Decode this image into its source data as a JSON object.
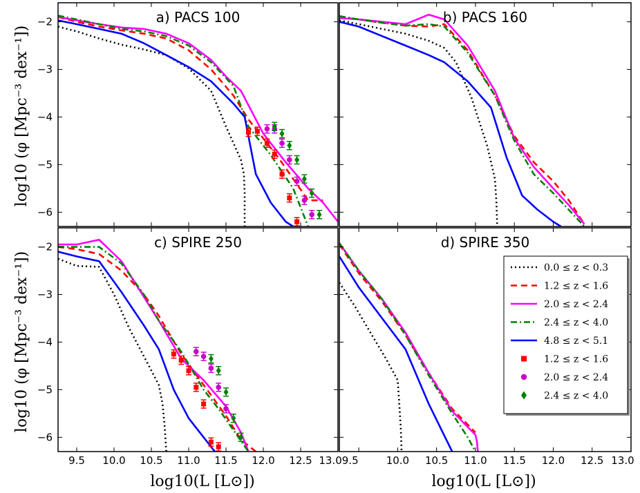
{
  "chart_data": {
    "type": "line",
    "xlabel": "log10(L [L⊙])",
    "ylabel": "log10 (φ [Mpc⁻³ dex⁻¹])",
    "xlim": [
      9.25,
      13.0
    ],
    "ylim": [
      -6.3,
      -1.6
    ],
    "xticks": [
      9.5,
      10.0,
      10.5,
      11.0,
      11.5,
      12.0,
      12.5,
      13.0
    ],
    "xtick_labels": [
      "9.5",
      "10.0",
      "10.5",
      "11.0",
      "11.5",
      "12.0",
      "12.5",
      "13.0"
    ],
    "xtick_labels_merged": [
      "13.09.5",
      "13.0"
    ],
    "yticks": [
      -2,
      -3,
      -4,
      -5,
      -6
    ],
    "ytick_labels": [
      "−2",
      "−3",
      "−4",
      "−5",
      "−6"
    ],
    "legend": {
      "placement": "lower-right of panel d",
      "entries": [
        {
          "label": "0.0 ≤ z < 0.3",
          "color": "#000000",
          "style": "dotted"
        },
        {
          "label": "1.2 ≤ z < 1.6",
          "color": "#ff0000",
          "style": "dashed"
        },
        {
          "label": "2.0 ≤ z < 2.4",
          "color": "#ff00ff",
          "style": "solid"
        },
        {
          "label": "2.4 ≤ z < 4.0",
          "color": "#008000",
          "style": "dashdot"
        },
        {
          "label": "4.8 ≤ z < 5.1",
          "color": "#0000ff",
          "style": "solid"
        },
        {
          "label": "1.2 ≤ z < 1.6",
          "color": "#ff0000",
          "marker": "square"
        },
        {
          "label": "2.0 ≤ z < 2.4",
          "color": "#cc00cc",
          "marker": "circle"
        },
        {
          "label": "2.4 ≤ z < 4.0",
          "color": "#008000",
          "marker": "diamond"
        }
      ]
    },
    "panels": [
      {
        "title": "a) PACS 100",
        "series": [
          {
            "name": "0.0 ≤ z < 0.3",
            "color": "#000000",
            "style": "dotted",
            "x": [
              9.25,
              9.5,
              9.8,
              10.1,
              10.4,
              10.7,
              11.0,
              11.3,
              11.5,
              11.7,
              11.74,
              11.75,
              11.75
            ],
            "y": [
              -2.1,
              -2.2,
              -2.35,
              -2.48,
              -2.58,
              -2.7,
              -2.98,
              -3.45,
              -4.2,
              -4.9,
              -5.2,
              -5.6,
              -6.3
            ]
          },
          {
            "name": "1.2 ≤ z < 1.6",
            "color": "#ff0000",
            "style": "dashed",
            "x": [
              9.25,
              9.5,
              9.8,
              10.1,
              10.4,
              10.7,
              11.0,
              11.3,
              11.6,
              11.8,
              12.0,
              12.2,
              12.4,
              12.6,
              12.8
            ],
            "y": [
              -1.9,
              -2.0,
              -2.1,
              -2.18,
              -2.25,
              -2.35,
              -2.6,
              -3.0,
              -3.55,
              -4.05,
              -4.45,
              -4.85,
              -5.3,
              -5.75,
              -5.75
            ]
          },
          {
            "name": "2.0 ≤ z < 2.4",
            "color": "#ff00ff",
            "style": "solid",
            "x": [
              9.25,
              9.5,
              9.8,
              10.1,
              10.4,
              10.7,
              11.0,
              11.3,
              11.5,
              11.7,
              12.0,
              12.3,
              12.6,
              12.8,
              13.0
            ],
            "y": [
              -1.9,
              -1.97,
              -2.05,
              -2.12,
              -2.15,
              -2.25,
              -2.45,
              -2.8,
              -3.15,
              -3.45,
              -4.35,
              -4.95,
              -5.5,
              -5.8,
              -6.2
            ]
          },
          {
            "name": "2.4 ≤ z < 4.0",
            "color": "#008000",
            "style": "dashdot",
            "x": [
              9.25,
              9.5,
              9.8,
              10.1,
              10.4,
              10.7,
              11.0,
              11.3,
              11.6,
              11.8,
              12.1,
              12.4,
              12.6
            ],
            "y": [
              -1.87,
              -1.95,
              -2.05,
              -2.15,
              -2.2,
              -2.3,
              -2.5,
              -2.85,
              -3.35,
              -4.2,
              -4.8,
              -5.5,
              -6.3
            ]
          },
          {
            "name": "4.8 ≤ z < 5.1",
            "color": "#0000ff",
            "style": "solid",
            "x": [
              9.25,
              9.5,
              9.8,
              10.1,
              10.4,
              10.7,
              11.0,
              11.3,
              11.6,
              11.75,
              11.9,
              12.1,
              12.3,
              12.4
            ],
            "y": [
              -1.97,
              -2.05,
              -2.15,
              -2.25,
              -2.45,
              -2.7,
              -2.95,
              -3.25,
              -3.72,
              -4.0,
              -5.2,
              -5.8,
              -6.2,
              -6.3
            ]
          }
        ],
        "points": [
          {
            "name": "1.2 ≤ z < 1.6",
            "color": "#ff0000",
            "marker": "square",
            "x": [
              11.8,
              11.92,
              12.05,
              12.15,
              12.25,
              12.35,
              12.45
            ],
            "y": [
              -4.32,
              -4.3,
              -4.55,
              -4.78,
              -5.2,
              -5.7,
              -6.2
            ]
          },
          {
            "name": "2.0 ≤ z < 2.4",
            "color": "#cc00cc",
            "marker": "circle",
            "x": [
              12.05,
              12.15,
              12.25,
              12.35,
              12.45,
              12.55,
              12.65
            ],
            "y": [
              -4.25,
              -4.25,
              -4.55,
              -4.9,
              -5.35,
              -5.75,
              -6.05
            ]
          },
          {
            "name": "2.4 ≤ z < 4.0",
            "color": "#008000",
            "marker": "diamond",
            "x": [
              12.15,
              12.25,
              12.35,
              12.45,
              12.55,
              12.65,
              12.75
            ],
            "y": [
              -4.2,
              -4.35,
              -4.6,
              -4.9,
              -5.3,
              -5.6,
              -6.05
            ]
          }
        ]
      },
      {
        "title": "b) PACS 160",
        "series": [
          {
            "name": "0.0 ≤ z < 0.3",
            "color": "#000000",
            "style": "dotted",
            "x": [
              9.25,
              9.5,
              9.8,
              10.1,
              10.4,
              10.6,
              10.75,
              10.95,
              11.15,
              11.25,
              11.27,
              11.28
            ],
            "y": [
              -1.97,
              -2.05,
              -2.15,
              -2.25,
              -2.4,
              -2.55,
              -2.85,
              -3.6,
              -4.6,
              -5.3,
              -5.8,
              -6.3
            ]
          },
          {
            "name": "1.2 ≤ z < 1.6",
            "color": "#ff0000",
            "style": "dashed",
            "x": [
              9.25,
              9.5,
              9.8,
              10.1,
              10.4,
              10.6,
              10.9,
              11.25,
              11.5,
              11.75,
              12.0,
              12.2,
              12.4
            ],
            "y": [
              -1.9,
              -1.95,
              -2.02,
              -2.08,
              -2.1,
              -2.05,
              -2.6,
              -3.55,
              -4.4,
              -4.95,
              -5.35,
              -5.75,
              -6.25
            ]
          },
          {
            "name": "2.0 ≤ z < 2.4",
            "color": "#ff00ff",
            "style": "solid",
            "x": [
              9.25,
              9.5,
              9.8,
              10.1,
              10.4,
              10.6,
              10.9,
              11.25,
              11.5,
              11.75,
              12.0,
              12.2,
              12.4
            ],
            "y": [
              -1.92,
              -1.95,
              -2.0,
              -2.05,
              -1.85,
              -1.95,
              -2.5,
              -3.45,
              -4.45,
              -5.05,
              -5.5,
              -5.85,
              -6.25
            ]
          },
          {
            "name": "2.4 ≤ z < 4.0",
            "color": "#008000",
            "style": "dashdot",
            "x": [
              9.25,
              9.5,
              9.8,
              10.1,
              10.4,
              10.6,
              10.9,
              11.25,
              11.5,
              11.75,
              12.0,
              12.2,
              12.4
            ],
            "y": [
              -1.88,
              -1.95,
              -2.02,
              -2.08,
              -2.05,
              -2.1,
              -2.65,
              -3.55,
              -4.5,
              -5.2,
              -5.6,
              -5.95,
              -6.3
            ]
          },
          {
            "name": "4.8 ≤ z < 5.1",
            "color": "#0000ff",
            "style": "solid",
            "x": [
              9.25,
              9.5,
              9.8,
              10.1,
              10.4,
              10.6,
              10.9,
              11.2,
              11.4,
              11.6,
              11.8,
              12.0,
              12.1
            ],
            "y": [
              -2.0,
              -2.1,
              -2.3,
              -2.5,
              -2.7,
              -2.85,
              -3.25,
              -3.8,
              -4.85,
              -5.65,
              -5.95,
              -6.2,
              -6.3
            ]
          }
        ],
        "points": []
      },
      {
        "title": "c) SPIRE 250",
        "series": [
          {
            "name": "0.0 ≤ z < 0.3",
            "color": "#000000",
            "style": "dotted",
            "x": [
              9.25,
              9.5,
              9.8,
              10.0,
              10.2,
              10.4,
              10.6,
              10.65,
              10.68,
              10.7
            ],
            "y": [
              -2.25,
              -2.4,
              -2.42,
              -3.0,
              -3.7,
              -4.3,
              -4.9,
              -5.3,
              -5.8,
              -6.3
            ]
          },
          {
            "name": "1.2 ≤ z < 1.6",
            "color": "#ff0000",
            "style": "dashed",
            "x": [
              9.25,
              9.5,
              9.8,
              10.1,
              10.4,
              10.6,
              10.9,
              11.2,
              11.5,
              11.7,
              11.9
            ],
            "y": [
              -2.0,
              -2.05,
              -2.15,
              -2.5,
              -3.0,
              -3.45,
              -4.25,
              -4.9,
              -5.55,
              -6.05,
              -6.3
            ]
          },
          {
            "name": "2.0 ≤ z < 2.4",
            "color": "#ff00ff",
            "style": "solid",
            "x": [
              9.25,
              9.5,
              9.8,
              10.1,
              10.4,
              10.6,
              10.9,
              11.2,
              11.5,
              11.7,
              11.8
            ],
            "y": [
              -1.95,
              -1.95,
              -1.85,
              -2.3,
              -3.05,
              -3.55,
              -4.35,
              -4.8,
              -5.35,
              -5.9,
              -6.3
            ]
          },
          {
            "name": "2.4 ≤ z < 4.0",
            "color": "#008000",
            "style": "dashdot",
            "x": [
              9.25,
              9.5,
              9.8,
              10.1,
              10.4,
              10.6,
              10.9,
              11.2,
              11.4,
              11.6,
              11.8
            ],
            "y": [
              -2.0,
              -2.0,
              -2.0,
              -2.35,
              -3.0,
              -3.55,
              -4.2,
              -5.0,
              -5.4,
              -5.85,
              -6.3
            ]
          },
          {
            "name": "4.8 ≤ z < 5.1",
            "color": "#0000ff",
            "style": "solid",
            "x": [
              9.25,
              9.5,
              9.8,
              10.1,
              10.4,
              10.6,
              10.8,
              11.0,
              11.2,
              11.35
            ],
            "y": [
              -2.1,
              -2.2,
              -2.3,
              -2.95,
              -3.65,
              -4.15,
              -5.0,
              -5.6,
              -6.0,
              -6.3
            ]
          }
        ],
        "points": [
          {
            "name": "1.2 ≤ z < 1.6",
            "color": "#ff0000",
            "marker": "square",
            "x": [
              10.8,
              10.9,
              11.0,
              11.1,
              11.2,
              11.3,
              11.4
            ],
            "y": [
              -4.25,
              -4.38,
              -4.6,
              -4.95,
              -5.3,
              -6.1,
              -6.2
            ]
          },
          {
            "name": "2.0 ≤ z < 2.4",
            "color": "#cc00cc",
            "marker": "circle",
            "x": [
              11.1,
              11.2,
              11.3,
              11.4,
              11.5
            ],
            "y": [
              -4.2,
              -4.3,
              -4.55,
              -4.95,
              -5.4
            ]
          },
          {
            "name": "2.4 ≤ z < 4.0",
            "color": "#008000",
            "marker": "diamond",
            "x": [
              11.3,
              11.4,
              11.5,
              11.6,
              11.7
            ],
            "y": [
              -4.35,
              -4.6,
              -5.05,
              -5.6,
              -6.0
            ]
          }
        ]
      },
      {
        "title": "d) SPIRE 350",
        "series": [
          {
            "name": "0.0 ≤ z < 0.3",
            "color": "#000000",
            "style": "dotted",
            "x": [
              9.25,
              9.45,
              9.65,
              9.85,
              10.0,
              10.02,
              10.04,
              10.05
            ],
            "y": [
              -2.75,
              -3.25,
              -3.8,
              -4.35,
              -4.8,
              -5.3,
              -5.8,
              -6.3
            ]
          },
          {
            "name": "1.2 ≤ z < 1.6",
            "color": "#ff0000",
            "style": "dashed",
            "x": [
              9.25,
              9.5,
              9.8,
              10.1,
              10.4,
              10.7,
              11.0
            ],
            "y": [
              -1.95,
              -2.55,
              -3.15,
              -3.85,
              -4.65,
              -5.4,
              -5.9
            ]
          },
          {
            "name": "2.0 ≤ z < 2.4",
            "color": "#ff00ff",
            "style": "solid",
            "x": [
              9.25,
              9.5,
              9.8,
              10.1,
              10.4,
              10.7,
              11.0,
              11.02,
              11.03
            ],
            "y": [
              -1.92,
              -2.5,
              -3.1,
              -3.8,
              -4.65,
              -5.45,
              -5.95,
              -6.1,
              -6.3
            ]
          },
          {
            "name": "2.4 ≤ z < 4.0",
            "color": "#008000",
            "style": "dashdot",
            "x": [
              9.25,
              9.5,
              9.8,
              10.1,
              10.4,
              10.7,
              10.9,
              11.0
            ],
            "y": [
              -1.92,
              -2.5,
              -3.1,
              -3.85,
              -4.7,
              -5.5,
              -6.0,
              -6.3
            ]
          },
          {
            "name": "4.8 ≤ z < 5.1",
            "color": "#0000ff",
            "style": "solid",
            "x": [
              9.25,
              9.5,
              9.8,
              10.1,
              10.4,
              10.7
            ],
            "y": [
              -2.2,
              -2.85,
              -3.5,
              -4.15,
              -5.3,
              -6.3
            ]
          }
        ],
        "points": []
      }
    ]
  }
}
